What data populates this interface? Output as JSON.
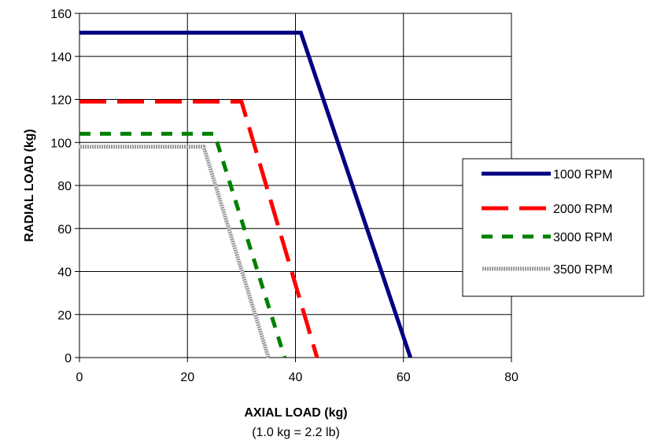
{
  "chart_data": {
    "type": "line",
    "title": "",
    "xlabel": "AXIAL LOAD (kg)",
    "xlabel_note": "(1.0 kg = 2.2 lb)",
    "ylabel": "RADIAL LOAD (kg)",
    "xlim": [
      0,
      80
    ],
    "ylim": [
      0,
      160
    ],
    "xticks": [
      0,
      20,
      40,
      60,
      80
    ],
    "yticks": [
      0,
      20,
      40,
      60,
      80,
      100,
      120,
      140,
      160
    ],
    "grid": true,
    "legend_position": "right",
    "series": [
      {
        "name": "1000 RPM",
        "color": "#000080",
        "style": "solid",
        "x": [
          0,
          41,
          61.3
        ],
        "y": [
          151,
          151,
          0
        ]
      },
      {
        "name": "2000 RPM",
        "color": "#ff0000",
        "style": "dashed",
        "x": [
          0,
          30,
          44
        ],
        "y": [
          119,
          119,
          0
        ]
      },
      {
        "name": "3000 RPM",
        "color": "#008000",
        "style": "dotted",
        "x": [
          0,
          25,
          38
        ],
        "y": [
          104,
          104,
          0
        ]
      },
      {
        "name": "3500 RPM",
        "color": "#a0a0a0",
        "style": "gray",
        "x": [
          0,
          23,
          35
        ],
        "y": [
          98,
          98,
          0
        ]
      }
    ]
  }
}
